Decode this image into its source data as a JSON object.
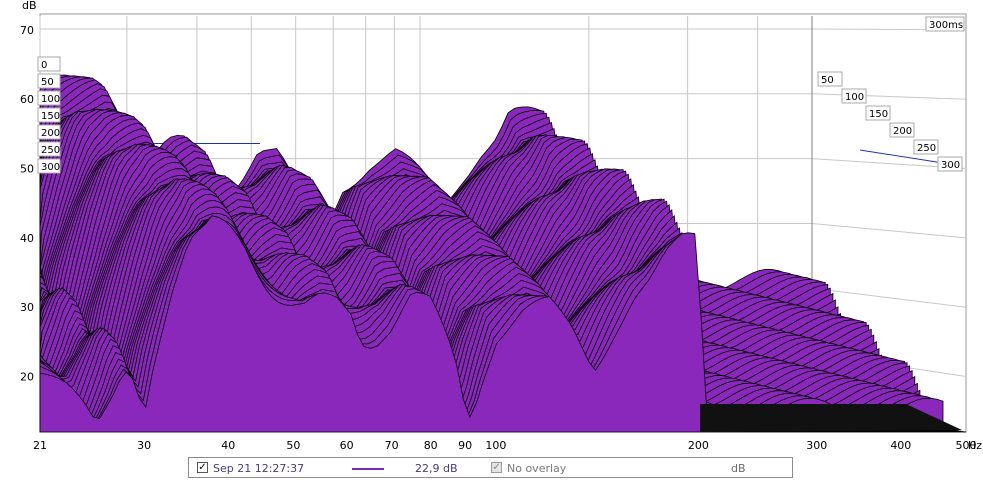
{
  "chart_data": {
    "type": "area",
    "subtype": "waterfall",
    "ylabel": "dB",
    "xlabel": "Hz",
    "x_scale": "log",
    "xlim": [
      21,
      500
    ],
    "ylim": [
      12,
      72
    ],
    "x_ticks": [
      "21",
      "30",
      "40",
      "50",
      "60",
      "70",
      "80",
      "90",
      "100",
      "200",
      "300",
      "400",
      "500"
    ],
    "y_ticks": [
      "70",
      "60",
      "50",
      "40",
      "30",
      "20"
    ],
    "time_axis_label": "300ms",
    "time_ticks_left": [
      "0",
      "50",
      "100",
      "150",
      "200",
      "250",
      "300"
    ],
    "time_ticks_right": [
      "50",
      "100",
      "150",
      "200",
      "250",
      "300"
    ],
    "slice_count": 60,
    "front_slice": {
      "x": [
        21,
        23,
        24.5,
        25.5,
        27,
        28,
        29,
        30,
        31,
        33,
        35,
        37,
        38,
        40,
        42,
        44,
        46,
        48,
        50,
        52,
        55,
        58,
        61,
        63,
        66,
        70,
        75,
        80,
        85,
        88,
        90,
        92,
        95,
        100,
        110,
        120,
        130,
        140,
        150,
        160,
        170,
        180,
        190,
        200,
        205
      ],
      "y": [
        20.5,
        17.5,
        15,
        13,
        18.5,
        22.5,
        21,
        15.5,
        22,
        31,
        38,
        41,
        43,
        43,
        41,
        36.5,
        32.5,
        30,
        29,
        29,
        31,
        31.5,
        30,
        26,
        25.5,
        27,
        31,
        30,
        25,
        21,
        16,
        15,
        20,
        26,
        29,
        30,
        27,
        22,
        27,
        31,
        33,
        37,
        40,
        41,
        12
      ]
    },
    "back_slice": {
      "x": [
        21,
        25,
        30,
        35,
        40,
        45,
        50,
        55,
        60,
        65,
        70,
        80,
        90,
        100,
        120,
        140,
        160,
        180,
        200,
        220,
        240,
        260,
        280,
        300,
        320,
        340,
        360,
        380,
        400,
        420,
        440,
        460,
        480,
        500
      ],
      "y": [
        18,
        18.5,
        19,
        18,
        19,
        19.5,
        19,
        20.5,
        20,
        19.5,
        20,
        19,
        20.5,
        20,
        19.5,
        20,
        19.5,
        20,
        21,
        22,
        24,
        25,
        27,
        28,
        27,
        26,
        22,
        18,
        14,
        13,
        12.5,
        12.5,
        12.5,
        12.5
      ]
    },
    "colors": {
      "fill": "#8a28bc",
      "edge": "#000000",
      "grid": "#c8c8c8",
      "reference_line": "#2233aa",
      "frame": "#9a9a9a"
    },
    "grid": true
  },
  "legend": {
    "enabled_checked": "✓",
    "date_label": "Sep 21 12:27:37",
    "line_color": "#7a2bb8",
    "value_label": "22,9 dB",
    "overlay_checked": "✓",
    "overlay_label": "No overlay",
    "unit_label": "dB"
  }
}
